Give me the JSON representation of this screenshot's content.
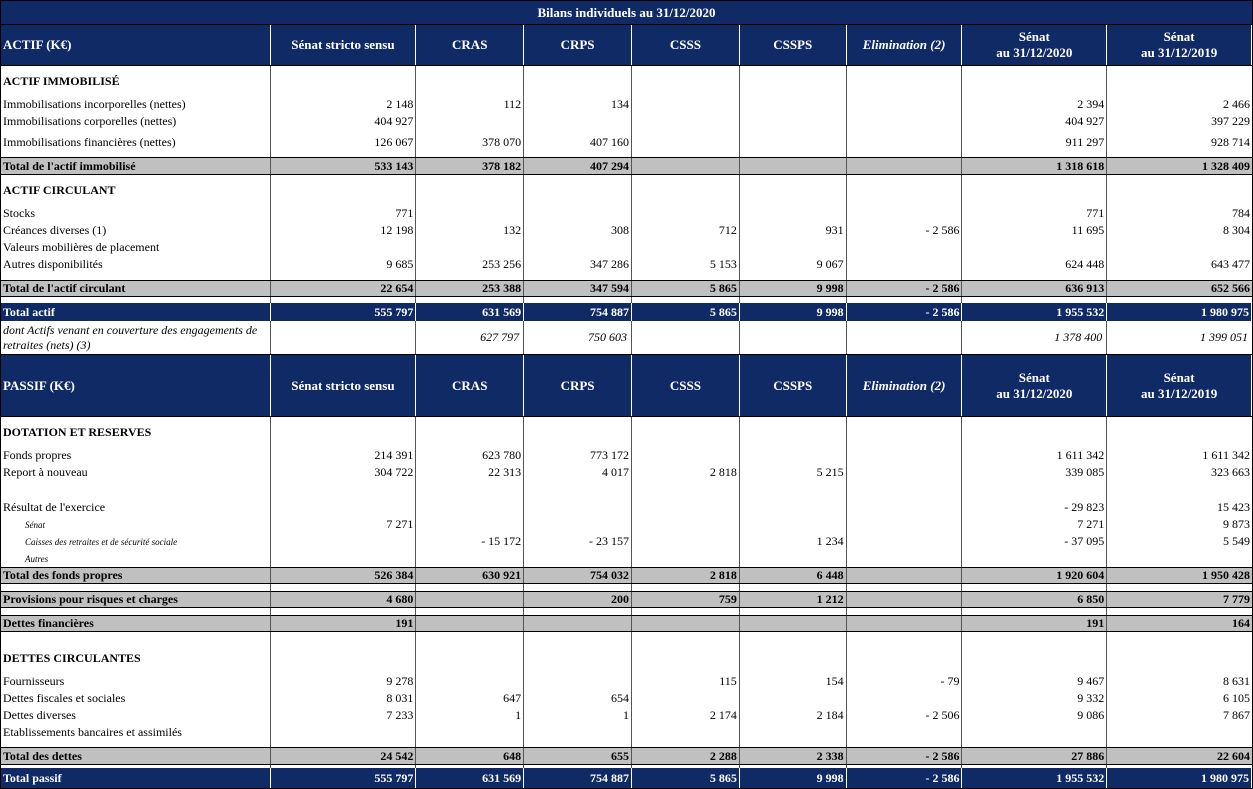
{
  "title": "Bilans individuels au 31/12/2020",
  "actif": {
    "header": [
      [
        "ACTIF (K€)"
      ],
      [
        "Sénat stricto sensu"
      ],
      [
        "CRAS"
      ],
      [
        "CRPS"
      ],
      [
        "CSSS"
      ],
      [
        "CSSPS"
      ],
      [
        "Elimination (2)"
      ],
      [
        "Sénat",
        "au 31/12/2020"
      ],
      [
        "Sénat",
        "au 31/12/2019"
      ]
    ],
    "rows": [
      [
        "ACTIF IMMOBILISÉ",
        null,
        null,
        null,
        null,
        null,
        null,
        null,
        null
      ],
      [
        "Immobilisations incorporelles (nettes)",
        "2 148",
        "112",
        "134",
        null,
        null,
        null,
        "2 394",
        "2 466"
      ],
      [
        "Immobilisations corporelles (nettes)",
        "404 927",
        null,
        null,
        null,
        null,
        null,
        "404 927",
        "397 229"
      ],
      [
        "Immobilisations financières (nettes)",
        "126 067",
        "378 070",
        "407 160",
        null,
        null,
        null,
        "911 297",
        "928 714"
      ],
      [
        "Total de l'actif immobilisé",
        "533 143",
        "378 182",
        "407 294",
        null,
        null,
        null,
        "1 318 618",
        "1 328 409"
      ],
      [
        "ACTIF CIRCULANT",
        null,
        null,
        null,
        null,
        null,
        null,
        null,
        null
      ],
      [
        "Stocks",
        "771",
        null,
        null,
        null,
        null,
        null,
        "771",
        "784"
      ],
      [
        "Créances diverses (1)",
        "12 198",
        "132",
        "308",
        "712",
        "931",
        "- 2 586",
        "11 695",
        "8 304"
      ],
      [
        "Valeurs mobilières de placement",
        null,
        null,
        null,
        null,
        null,
        null,
        null,
        null
      ],
      [
        "Autres disponibilités",
        "9 685",
        "253 256",
        "347 286",
        "5 153",
        "9 067",
        null,
        "624 448",
        "643 477"
      ],
      [
        "Total de l'actif circulant",
        "22 654",
        "253 388",
        "347 594",
        "5 865",
        "9 998",
        "- 2 586",
        "636 913",
        "652 566"
      ],
      [
        "Total actif",
        "555 797",
        "631 569",
        "754 887",
        "5 865",
        "9 998",
        "- 2 586",
        "1 955 532",
        "1 980 975"
      ],
      [
        "dont Actifs venant en couverture des engagements de retraites (nets) (3)",
        null,
        "627 797",
        "750 603",
        null,
        null,
        null,
        "1 378 400",
        "1 399 051"
      ]
    ]
  },
  "passif": {
    "header": [
      [
        "PASSIF (K€)"
      ],
      [
        "Sénat stricto sensu"
      ],
      [
        "CRAS"
      ],
      [
        "CRPS"
      ],
      [
        "CSSS"
      ],
      [
        "CSSPS"
      ],
      [
        "Elimination (2)"
      ],
      [
        "Sénat",
        "au 31/12/2020"
      ],
      [
        "Sénat",
        "au 31/12/2019"
      ]
    ],
    "rows": [
      [
        "DOTATION ET RESERVES",
        null,
        null,
        null,
        null,
        null,
        null,
        null,
        null
      ],
      [
        "Fonds propres",
        "214 391",
        "623 780",
        "773 172",
        null,
        null,
        null,
        "1 611 342",
        "1 611 342"
      ],
      [
        "Report à nouveau",
        "304 722",
        "22 313",
        "4 017",
        "2 818",
        "5 215",
        null,
        "339 085",
        "323 663"
      ],
      [
        "Résultat de l'exercice",
        null,
        null,
        null,
        null,
        null,
        null,
        "- 29 823",
        "15 423"
      ],
      [
        "Sénat",
        "7 271",
        null,
        null,
        null,
        null,
        null,
        "7 271",
        "9 873"
      ],
      [
        "Caisses des retraites et de sécurité sociale",
        null,
        "- 15 172",
        "- 23 157",
        null,
        "1 234",
        null,
        "- 37 095",
        "5 549"
      ],
      [
        "Autres",
        null,
        null,
        null,
        null,
        null,
        null,
        null,
        null
      ],
      [
        "Total des fonds propres",
        "526 384",
        "630 921",
        "754 032",
        "2 818",
        "6 448",
        null,
        "1 920 604",
        "1 950 428"
      ],
      [
        "Provisions pour risques et charges",
        "4 680",
        null,
        "200",
        "759",
        "1 212",
        null,
        "6 850",
        "7 779"
      ],
      [
        "Dettes financières",
        "191",
        null,
        null,
        null,
        null,
        null,
        "191",
        "164"
      ],
      [
        "DETTES CIRCULANTES",
        null,
        null,
        null,
        null,
        null,
        null,
        null,
        null
      ],
      [
        "Fournisseurs",
        "9 278",
        null,
        null,
        "115",
        "154",
        "- 79",
        "9 467",
        "8 631"
      ],
      [
        "Dettes fiscales et sociales",
        "8 031",
        "647",
        "654",
        null,
        null,
        null,
        "9 332",
        "6 105"
      ],
      [
        "Dettes diverses",
        "7 233",
        "1",
        "1",
        "2 174",
        "2 184",
        "- 2 506",
        "9 086",
        "7 867"
      ],
      [
        "Etablissements bancaires et assimilés",
        null,
        null,
        null,
        null,
        null,
        null,
        null,
        null
      ],
      [
        "Total des dettes",
        "24 542",
        "648",
        "655",
        "2 288",
        "2 338",
        "- 2 586",
        "27 886",
        "22 604"
      ],
      [
        "Total passif",
        "555 797",
        "631 569",
        "754 887",
        "5 865",
        "9 998",
        "- 2 586",
        "1 955 532",
        "1 980 975"
      ]
    ]
  }
}
